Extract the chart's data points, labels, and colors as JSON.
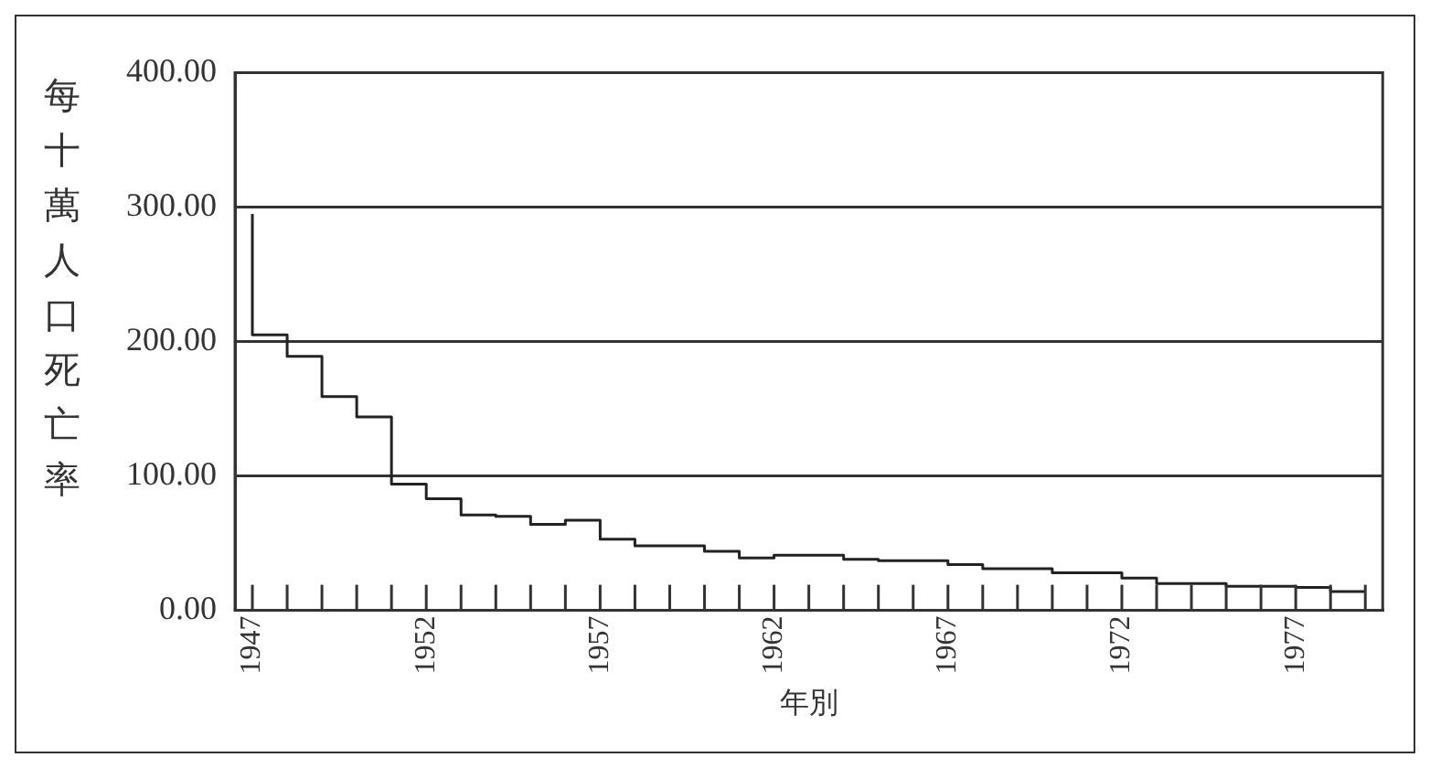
{
  "chart_data": {
    "type": "step",
    "xlabel": "年別",
    "ylabel": "每十萬人口死亡率",
    "categories": [
      "1947",
      null,
      null,
      null,
      null,
      "1952",
      null,
      null,
      null,
      null,
      "1957",
      null,
      null,
      null,
      null,
      "1962",
      null,
      null,
      null,
      null,
      "1967",
      null,
      null,
      null,
      null,
      "1972",
      null,
      null,
      null,
      null,
      "1977",
      null,
      null
    ],
    "series": [
      {
        "color": "#222222",
        "values": [
          295,
          205,
          189,
          159,
          144,
          94,
          83,
          71,
          70,
          64,
          67,
          53,
          48,
          48,
          44,
          39,
          41,
          41,
          38,
          37,
          37,
          34,
          31,
          31,
          28,
          28,
          24,
          20,
          20,
          18,
          18,
          17,
          14
        ]
      }
    ],
    "ylim": [
      0,
      400
    ],
    "yticks": [
      {
        "value": 0,
        "label": "0.00"
      },
      {
        "value": 100,
        "label": "100.00"
      },
      {
        "value": 200,
        "label": "200.00"
      },
      {
        "value": 300,
        "label": "300.00"
      },
      {
        "value": 400,
        "label": "400.00"
      }
    ],
    "grid": "y",
    "legend": false,
    "marker": "none",
    "line_style": "solid"
  }
}
